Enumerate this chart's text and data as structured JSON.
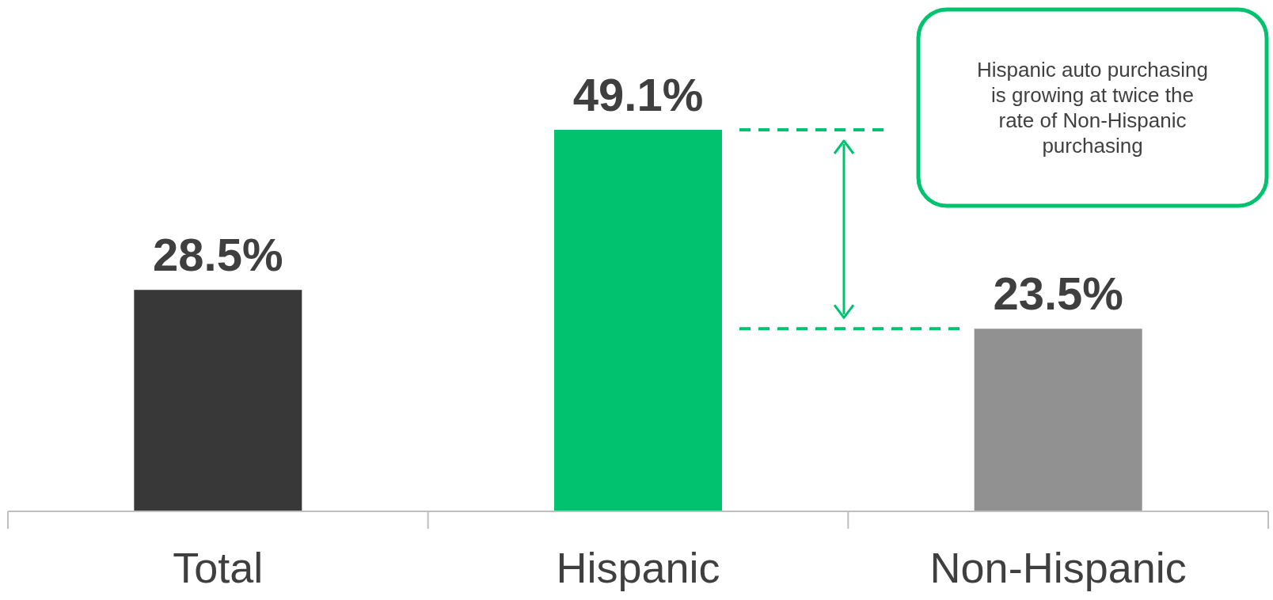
{
  "chart_data": {
    "type": "bar",
    "categories": [
      "Total",
      "Hispanic",
      "Non-Hispanic"
    ],
    "values": [
      28.5,
      49.1,
      23.5
    ],
    "colors": [
      "#383838",
      "#00c26f",
      "#919191"
    ],
    "data_labels": true,
    "value_labels": [
      "28.5%",
      "49.1%",
      "23.5%"
    ],
    "ref_lines": [
      {
        "axis": "y",
        "value": 49.1,
        "color": "#00c26f",
        "line_style": "dashed"
      },
      {
        "axis": "y",
        "value": 23.5,
        "color": "#00c26f",
        "line_style": "dashed"
      }
    ],
    "annotations": [
      "Hispanic auto purchasing is growing at twice the rate of Non-Hispanic purchasing"
    ]
  }
}
